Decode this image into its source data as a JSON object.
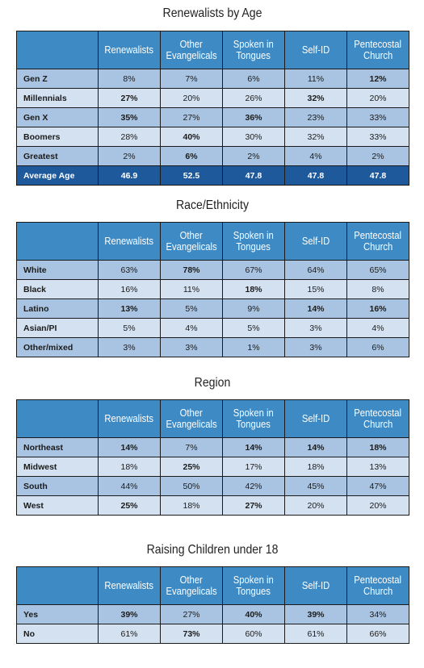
{
  "columns": [
    "Renewalists",
    "Other Evangelicals",
    "Spoken in Tongues",
    "Self-ID",
    "Pentecostal Church"
  ],
  "column_lines": [
    [
      "Renewalists"
    ],
    [
      "Other",
      "Evangelicals"
    ],
    [
      "Spoken in",
      "Tongues"
    ],
    [
      "Self-ID"
    ],
    [
      "Pentecostal",
      "Church"
    ]
  ],
  "chart_data": [
    {
      "type": "table",
      "title": "Renewalists by Age",
      "rows": [
        {
          "label": "Gen Z",
          "values": [
            "8%",
            "7%",
            "6%",
            "11%",
            "12%"
          ],
          "bold": [
            false,
            false,
            false,
            false,
            true
          ]
        },
        {
          "label": "Millennials",
          "values": [
            "27%",
            "20%",
            "26%",
            "32%",
            "20%"
          ],
          "bold": [
            true,
            false,
            false,
            true,
            false
          ]
        },
        {
          "label": "Gen X",
          "values": [
            "35%",
            "27%",
            "36%",
            "23%",
            "33%"
          ],
          "bold": [
            true,
            false,
            true,
            false,
            false
          ]
        },
        {
          "label": "Boomers",
          "values": [
            "28%",
            "40%",
            "30%",
            "32%",
            "33%"
          ],
          "bold": [
            false,
            true,
            false,
            false,
            false
          ]
        },
        {
          "label": "Greatest",
          "values": [
            "2%",
            "6%",
            "2%",
            "4%",
            "2%"
          ],
          "bold": [
            false,
            true,
            false,
            false,
            false
          ]
        },
        {
          "label": "Average Age",
          "values": [
            "46.9",
            "52.5",
            "47.8",
            "47.8",
            "47.8"
          ],
          "bold": [
            true,
            true,
            true,
            true,
            true
          ],
          "summary": true
        }
      ]
    },
    {
      "type": "table",
      "title": "Race/Ethnicity",
      "rows": [
        {
          "label": "White",
          "values": [
            "63%",
            "78%",
            "67%",
            "64%",
            "65%"
          ],
          "bold": [
            false,
            true,
            false,
            false,
            false
          ]
        },
        {
          "label": "Black",
          "values": [
            "16%",
            "11%",
            "18%",
            "15%",
            "8%"
          ],
          "bold": [
            false,
            false,
            true,
            false,
            false
          ]
        },
        {
          "label": "Latino",
          "values": [
            "13%",
            "5%",
            "9%",
            "14%",
            "16%"
          ],
          "bold": [
            true,
            false,
            false,
            true,
            true
          ]
        },
        {
          "label": "Asian/PI",
          "values": [
            "5%",
            "4%",
            "5%",
            "3%",
            "4%"
          ],
          "bold": [
            false,
            false,
            false,
            false,
            false
          ]
        },
        {
          "label": "Other/mixed",
          "values": [
            "3%",
            "3%",
            "1%",
            "3%",
            "6%"
          ],
          "bold": [
            false,
            false,
            false,
            false,
            false
          ]
        }
      ]
    },
    {
      "type": "table",
      "title": "Region",
      "rows": [
        {
          "label": "Northeast",
          "values": [
            "14%",
            "7%",
            "14%",
            "14%",
            "18%"
          ],
          "bold": [
            true,
            false,
            true,
            true,
            true
          ]
        },
        {
          "label": "Midwest",
          "values": [
            "18%",
            "25%",
            "17%",
            "18%",
            "13%"
          ],
          "bold": [
            false,
            true,
            false,
            false,
            false
          ]
        },
        {
          "label": "South",
          "values": [
            "44%",
            "50%",
            "42%",
            "45%",
            "47%"
          ],
          "bold": [
            false,
            false,
            false,
            false,
            false
          ]
        },
        {
          "label": "West",
          "values": [
            "25%",
            "18%",
            "27%",
            "20%",
            "20%"
          ],
          "bold": [
            true,
            false,
            true,
            false,
            false
          ]
        }
      ]
    },
    {
      "type": "table",
      "title": "Raising Children under 18",
      "rows": [
        {
          "label": "Yes",
          "values": [
            "39%",
            "27%",
            "40%",
            "39%",
            "34%"
          ],
          "bold": [
            true,
            false,
            true,
            true,
            false
          ]
        },
        {
          "label": "No",
          "values": [
            "61%",
            "73%",
            "60%",
            "61%",
            "66%"
          ],
          "bold": [
            false,
            true,
            false,
            false,
            false
          ]
        }
      ]
    }
  ]
}
